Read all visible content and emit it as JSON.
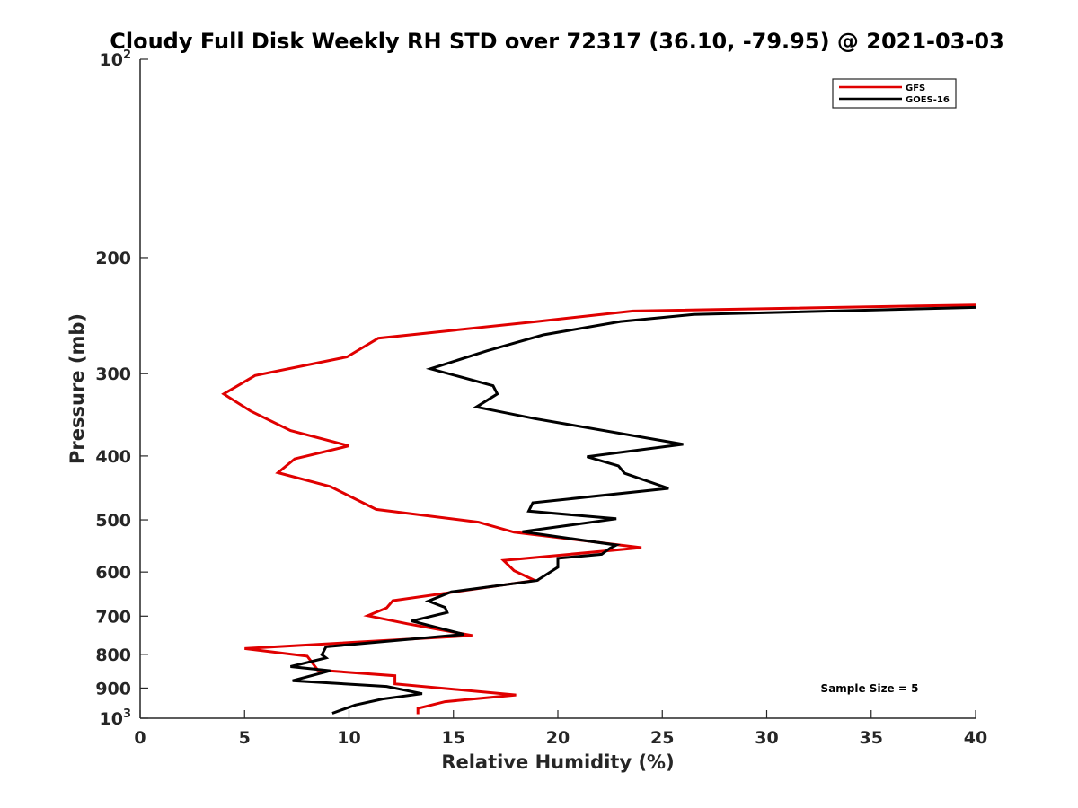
{
  "chart_data": {
    "type": "line",
    "title": "Cloudy Full Disk Weekly RH STD over 72317 (36.10, -79.95) @ 2021-03-03",
    "xlabel": "Relative Humidity (%)",
    "ylabel": "Pressure (mb)",
    "xlim": [
      0,
      40
    ],
    "ylim": [
      100,
      1000
    ],
    "yscale": "log",
    "y_reversed": true,
    "grid": false,
    "legend_position": "top-right",
    "x_ticks": [
      "0",
      "5",
      "10",
      "15",
      "20",
      "25",
      "30",
      "35",
      "40"
    ],
    "y_ticks": [
      {
        "value": 100,
        "label": "10",
        "sup": "2"
      },
      {
        "value": 200,
        "label": "200",
        "sup": ""
      },
      {
        "value": 300,
        "label": "300",
        "sup": ""
      },
      {
        "value": 400,
        "label": "400",
        "sup": ""
      },
      {
        "value": 500,
        "label": "500",
        "sup": ""
      },
      {
        "value": 600,
        "label": "600",
        "sup": ""
      },
      {
        "value": 700,
        "label": "700",
        "sup": ""
      },
      {
        "value": 800,
        "label": "800",
        "sup": ""
      },
      {
        "value": 900,
        "label": "900",
        "sup": ""
      },
      {
        "value": 1000,
        "label": "10",
        "sup": "3"
      }
    ],
    "annotation": "Sample Size = 5",
    "series": [
      {
        "name": "GFS",
        "color": "#e00000",
        "x": [
          40,
          23.6,
          19.0,
          11.4,
          9.9,
          5.5,
          4.0,
          5.3,
          7.2,
          10.0,
          7.4,
          6.6,
          9.1,
          11.3,
          16.2,
          17.9,
          24.0,
          17.4,
          17.9,
          18.9,
          12.1,
          11.8,
          10.9,
          12.8,
          15.9,
          5.0,
          8.0,
          8.5,
          12.2,
          12.2,
          18.0,
          14.6,
          13.3,
          13.3
        ],
        "y": [
          236,
          241,
          250,
          265,
          283,
          302,
          322,
          342,
          366,
          386,
          404,
          424,
          445,
          482,
          504,
          522,
          551,
          576,
          597,
          618,
          663,
          680,
          699,
          719,
          749,
          784,
          805,
          845,
          862,
          887,
          922,
          944,
          966,
          986
        ]
      },
      {
        "name": "GOES-16",
        "color": "#000000",
        "x": [
          40,
          26.5,
          23.0,
          19.3,
          16.6,
          13.9,
          16.9,
          17.1,
          16.1,
          18.9,
          26.0,
          21.4,
          22.9,
          23.2,
          25.3,
          18.8,
          18.6,
          22.8,
          18.3,
          22.8,
          22.5,
          22.1,
          20.0,
          20.0,
          19.0,
          14.9,
          13.8,
          14.6,
          14.7,
          13.0,
          15.5,
          8.9,
          8.7,
          8.9,
          7.2,
          9.1,
          7.3,
          11.8,
          13.5,
          11.6,
          10.3,
          9.2
        ],
        "y": [
          238,
          244,
          250,
          262,
          277,
          295,
          313,
          322,
          337,
          351,
          384,
          401,
          414,
          425,
          448,
          471,
          485,
          498,
          521,
          546,
          552,
          564,
          572,
          590,
          618,
          643,
          664,
          679,
          691,
          712,
          746,
          779,
          801,
          810,
          835,
          847,
          877,
          895,
          918,
          935,
          955,
          983
        ]
      }
    ]
  }
}
